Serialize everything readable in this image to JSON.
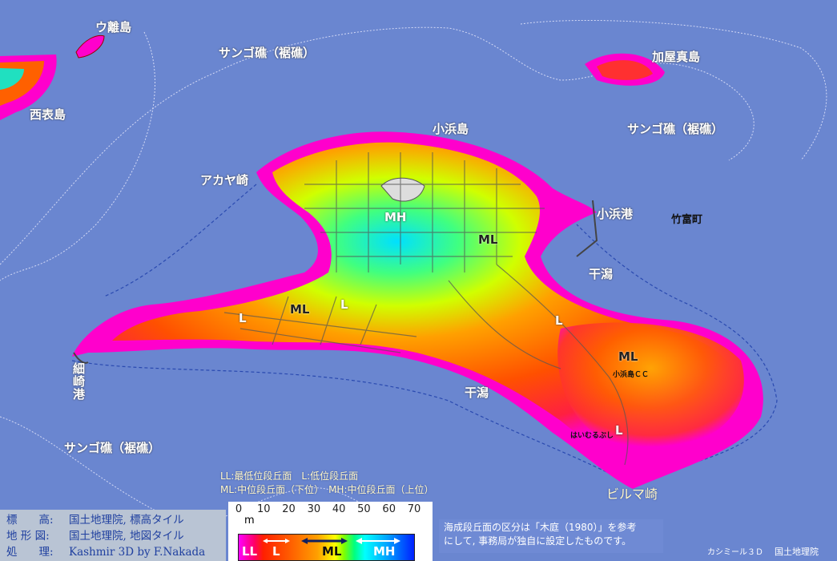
{
  "labels": {
    "u_island": "ウ離島",
    "reef_north": "サンゴ礁（裾礁）",
    "kayama": "加屋真島",
    "iriomote": "西表島",
    "kohama_island": "小浜島",
    "reef_east": "サンゴ礁（裾礁）",
    "akaya": "アカヤ崎",
    "kohama_port": "小浜港",
    "taketomi": "竹富町",
    "tidal_flat_east": "干潟",
    "hosozaki_port": "細崎港",
    "tidal_flat_south": "干潟",
    "reef_southwest": "サンゴ礁（裾礁）",
    "biruma": "ビルマ崎",
    "golf": "小浜島ＣＣ",
    "resort": "はいむるぶし"
  },
  "terrace_marks": {
    "mh": "MH",
    "ml_center": "ML",
    "ml_west": "ML",
    "l_west1": "L",
    "l_west2": "L",
    "l_east": "L",
    "ml_east": "ML",
    "l_south": "L"
  },
  "legend": {
    "line1": "LL:最低位段丘面　L:低位段丘面",
    "line2": "ML:中位段丘面（下位）　MH:中位段丘面（上位）",
    "unit": "m",
    "ticks": [
      "0",
      "10",
      "20",
      "30",
      "40",
      "50",
      "60",
      "70"
    ],
    "zones": [
      "LL",
      "L",
      "ML",
      "MH"
    ],
    "range_min": 0,
    "range_max": 70
  },
  "credits": [
    {
      "key": "標　　高:",
      "value": "国土地理院, 標高タイル"
    },
    {
      "key": "地 形 図:",
      "value": "国土地理院, 地図タイル"
    },
    {
      "key": "処　　理:",
      "value": "Kashmir 3D by F.Nakada"
    }
  ],
  "note": {
    "line1": "海成段丘面の区分は「木庭（1980）」を参考",
    "line2": "にして, 事務局が独自に設定したものです。"
  },
  "footer": {
    "software": "カシミール３Ｄ",
    "agency": "国土地理院"
  },
  "colors": {
    "sea": "#6a86d0",
    "low": "#ff00cc",
    "high": "#00ffff"
  }
}
